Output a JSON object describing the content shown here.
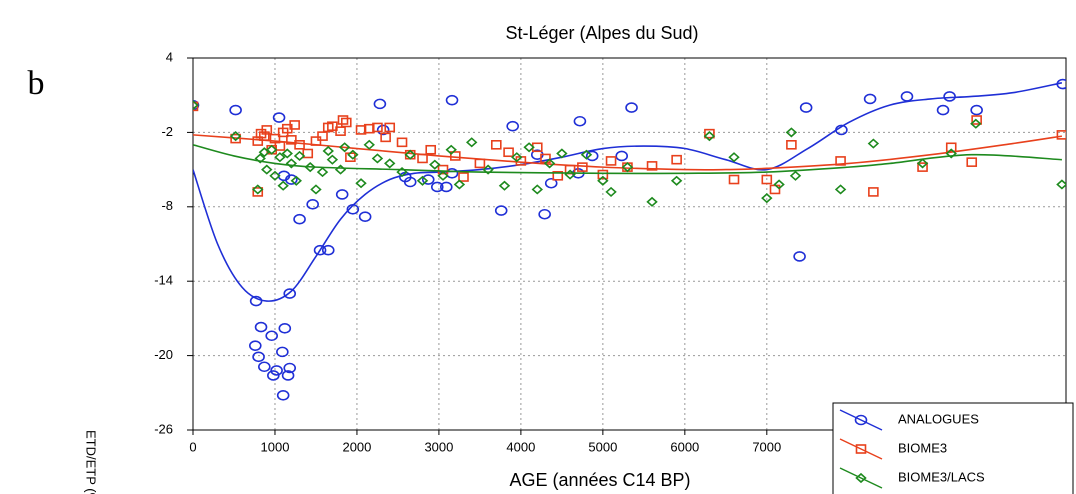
{
  "chart_data": {
    "type": "scatter",
    "title": "St-Léger (Alpes du Sud)",
    "panel_label": "b",
    "x_label": "AGE (années C14 BP)",
    "y_label": "ETD/ETP (%)",
    "xlim": [
      0,
      10650
    ],
    "ylim": [
      -26,
      4
    ],
    "xticks": [
      0,
      1000,
      2000,
      3000,
      4000,
      5000,
      6000,
      7000
    ],
    "yticks": [
      4,
      -2,
      -8,
      -14,
      -20,
      -26
    ],
    "grid": true,
    "legend": "lower right",
    "series": [
      {
        "name": "ANALOGUES",
        "color": "#1f2fd6",
        "marker": "circle",
        "x": [
          0,
          520,
          1050,
          2280,
          3160,
          3900,
          4720,
          5350,
          7480,
          7910,
          8260,
          8710,
          9150,
          9230,
          9560,
          10610,
          770,
          830,
          960,
          760,
          800,
          870,
          980,
          1020,
          1090,
          1120,
          1100,
          1160,
          1180,
          1180,
          1300,
          1460,
          1550,
          1650,
          1820,
          1950,
          2100,
          2320,
          2590,
          2650,
          2870,
          2980,
          3090,
          3160,
          3760,
          4200,
          4290,
          4370,
          4700,
          4870,
          5230,
          7400,
          1110,
          1200
        ],
        "values": [
          0.2,
          -0.2,
          -0.8,
          0.3,
          0.6,
          -1.5,
          -1.1,
          0,
          0,
          -1.8,
          0.7,
          0.9,
          -0.2,
          0.9,
          -0.2,
          1.9,
          -15.6,
          -17.7,
          -18.4,
          -19.2,
          -20.1,
          -20.9,
          -21.6,
          -21.2,
          -19.7,
          -17.8,
          -23.2,
          -21.6,
          -21,
          -15,
          -9,
          -7.8,
          -11.5,
          -11.5,
          -7,
          -8.2,
          -8.8,
          -1.8,
          -5.6,
          -6,
          -5.8,
          -6.4,
          -6.4,
          -5.3,
          -8.3,
          -3.8,
          -8.6,
          -6.1,
          -5.3,
          -3.9,
          -3.9,
          -12,
          -5.5,
          -5.8
        ],
        "fit_x": [
          0,
          300,
          600,
          900,
          1200,
          1500,
          1800,
          2100,
          2400,
          2700,
          3000,
          3500,
          4000,
          4500,
          5000,
          5500,
          6000,
          6500,
          7000,
          7500,
          8000,
          8500,
          9000,
          9500,
          10000,
          10600
        ],
        "fit_values": [
          -5,
          -11,
          -14.5,
          -15.6,
          -14.8,
          -12,
          -9,
          -7,
          -5.8,
          -5.3,
          -5.2,
          -5,
          -4.6,
          -4,
          -3.3,
          -3.1,
          -3.3,
          -4.2,
          -5,
          -3.3,
          -1.2,
          0.2,
          0.7,
          0.9,
          1.2,
          2
        ]
      },
      {
        "name": "BIOME3",
        "color": "#e8401c",
        "marker": "square",
        "x": [
          0,
          520,
          790,
          790,
          830,
          870,
          900,
          960,
          1000,
          1060,
          1100,
          1150,
          1200,
          1240,
          1300,
          1400,
          1500,
          1580,
          1650,
          1700,
          1800,
          1830,
          1870,
          1920,
          2050,
          2150,
          2250,
          2350,
          2400,
          2550,
          2650,
          2800,
          2900,
          3050,
          3200,
          3300,
          3500,
          3700,
          3850,
          4000,
          4200,
          4300,
          4450,
          4600,
          4750,
          5000,
          5100,
          5300,
          5600,
          5900,
          6300,
          6600,
          7000,
          7100,
          7300,
          7900,
          8300,
          8900,
          9250,
          9500,
          9560,
          10600
        ],
        "values": [
          0.1,
          -2.5,
          -6.8,
          -2.7,
          -2.1,
          -2.3,
          -1.8,
          -3.4,
          -2.5,
          -3.1,
          -2,
          -1.7,
          -2.6,
          -1.4,
          -3,
          -3.7,
          -2.7,
          -2.3,
          -1.6,
          -1.5,
          -1.9,
          -1,
          -1.2,
          -4,
          -1.8,
          -1.7,
          -1.6,
          -2.4,
          -1.6,
          -2.8,
          -3.8,
          -4.1,
          -3.4,
          -5,
          -3.9,
          -5.6,
          -4.5,
          -3,
          -3.6,
          -4.3,
          -3.2,
          -4.1,
          -5.5,
          -5,
          -4.8,
          -5.4,
          -4.3,
          -4.8,
          -4.7,
          -4.2,
          -2.1,
          -5.8,
          -5.8,
          -6.6,
          -3,
          -4.3,
          -6.8,
          -4.8,
          -3.2,
          -4.4,
          -1,
          -2.2
        ],
        "fit_x": [
          0,
          1000,
          2000,
          3000,
          4000,
          5000,
          6000,
          6500,
          7000,
          8000,
          9000,
          10000,
          10600
        ],
        "fit_values": [
          -2.2,
          -2.7,
          -3.3,
          -3.9,
          -4.4,
          -4.8,
          -5,
          -5,
          -4.9,
          -4.5,
          -3.8,
          -2.9,
          -2.3
        ]
      },
      {
        "name": "BIOME3/LACS",
        "color": "#1e8a1e",
        "marker": "diamond",
        "x": [
          0,
          520,
          790,
          820,
          870,
          900,
          960,
          1000,
          1060,
          1100,
          1150,
          1200,
          1260,
          1300,
          1430,
          1500,
          1580,
          1650,
          1700,
          1800,
          1850,
          1950,
          2050,
          2150,
          2250,
          2400,
          2550,
          2650,
          2800,
          2950,
          3050,
          3150,
          3250,
          3400,
          3600,
          3800,
          3950,
          4100,
          4200,
          4350,
          4500,
          4600,
          4800,
          5000,
          5100,
          5300,
          5600,
          5900,
          6300,
          6600,
          7000,
          7150,
          7300,
          7350,
          7900,
          8300,
          8900,
          9250,
          9550,
          10600
        ],
        "values": [
          0.2,
          -2.3,
          -6.6,
          -4.1,
          -3.6,
          -5,
          -3.4,
          -5.5,
          -4,
          -6.3,
          -3.7,
          -4.5,
          -5.9,
          -3.9,
          -4.8,
          -6.6,
          -5.2,
          -3.5,
          -4.2,
          -5,
          -3.2,
          -3.8,
          -6.1,
          -3,
          -4.1,
          -4.5,
          -5.2,
          -3.8,
          -5.9,
          -4.6,
          -5.5,
          -3.4,
          -6.2,
          -2.8,
          -5,
          -6.3,
          -4,
          -3.2,
          -6.6,
          -4.5,
          -3.7,
          -5.4,
          -3.8,
          -5.9,
          -6.8,
          -4.8,
          -7.6,
          -5.9,
          -2.3,
          -4,
          -7.3,
          -6.2,
          -2,
          -5.5,
          -6.6,
          -2.9,
          -4.5,
          -3.7,
          -1.3,
          -6.2
        ],
        "fit_x": [
          0,
          500,
          1000,
          1500,
          2500,
          3500,
          5000,
          6000,
          7000,
          8000,
          8500,
          9500,
          10600
        ],
        "fit_values": [
          -3,
          -3.9,
          -4.5,
          -4.8,
          -5,
          -5.2,
          -5.3,
          -5.3,
          -5.2,
          -4.8,
          -4.5,
          -3.8,
          -4.2
        ]
      }
    ]
  }
}
